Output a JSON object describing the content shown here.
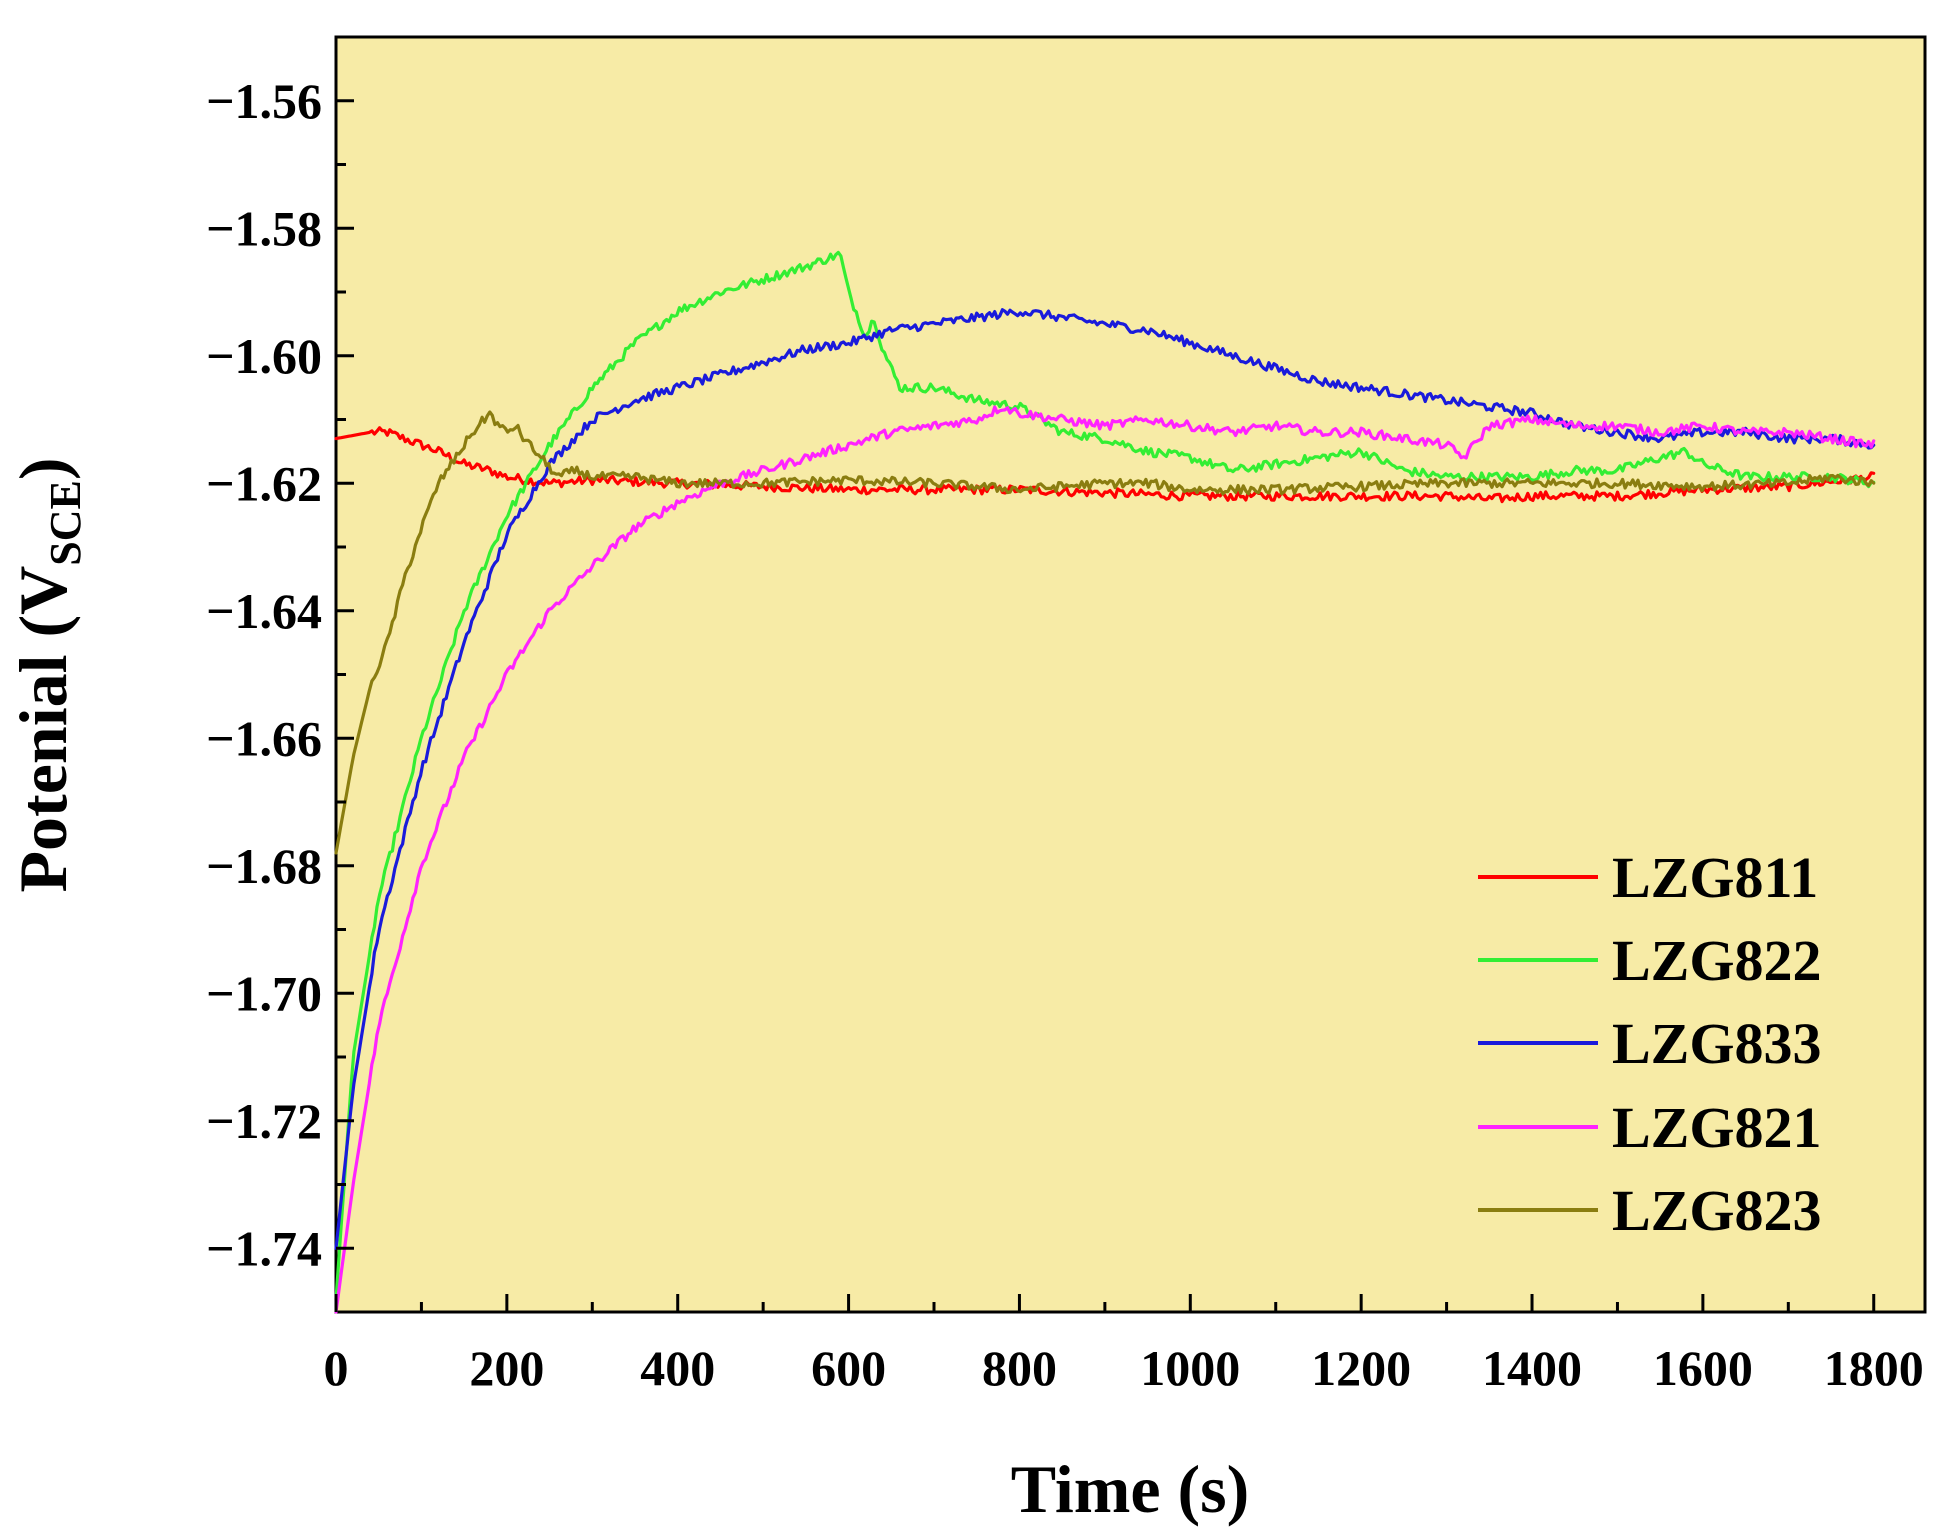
{
  "chart_data": {
    "type": "line",
    "title": "",
    "xlabel": "Time (s)",
    "ylabel_main": "Potenial (V",
    "ylabel_sub": "SCE",
    "ylabel_close": ")",
    "xlim": [
      0,
      1860
    ],
    "ylim": [
      -1.75,
      -1.55
    ],
    "xticks": [
      0,
      200,
      400,
      600,
      800,
      1000,
      1200,
      1400,
      1600,
      1800
    ],
    "xtick_labels": [
      "0",
      "200",
      "400",
      "600",
      "800",
      "1000",
      "1200",
      "1400",
      "1600",
      "1800"
    ],
    "yticks": [
      -1.56,
      -1.58,
      -1.6,
      -1.62,
      -1.64,
      -1.66,
      -1.68,
      -1.7,
      -1.72,
      -1.74
    ],
    "ytick_labels": [
      "−1.56",
      "−1.58",
      "−1.60",
      "−1.62",
      "−1.64",
      "−1.66",
      "−1.68",
      "−1.70",
      "−1.72",
      "−1.74"
    ],
    "background_color": "#f7eba6",
    "legend_position": "lower-right",
    "series": [
      {
        "name": "LZG811",
        "color": "#ff0000",
        "x": [
          0,
          20,
          40,
          60,
          80,
          100,
          120,
          150,
          180,
          200,
          250,
          300,
          400,
          500,
          600,
          700,
          800,
          900,
          1000,
          1100,
          1200,
          1300,
          1350,
          1400,
          1500,
          1600,
          1700,
          1800
        ],
        "y": [
          -1.613,
          -1.6125,
          -1.612,
          -1.612,
          -1.613,
          -1.614,
          -1.615,
          -1.617,
          -1.618,
          -1.619,
          -1.62,
          -1.6195,
          -1.62,
          -1.6205,
          -1.621,
          -1.621,
          -1.621,
          -1.6215,
          -1.622,
          -1.622,
          -1.622,
          -1.622,
          -1.6225,
          -1.622,
          -1.622,
          -1.621,
          -1.6205,
          -1.619
        ]
      },
      {
        "name": "LZG822",
        "color": "#33ee33",
        "x": [
          0,
          20,
          50,
          100,
          150,
          200,
          250,
          300,
          350,
          400,
          450,
          500,
          550,
          590,
          600,
          620,
          630,
          640,
          660,
          700,
          750,
          800,
          850,
          900,
          950,
          1000,
          1050,
          1100,
          1150,
          1200,
          1250,
          1300,
          1350,
          1400,
          1450,
          1500,
          1550,
          1580,
          1600,
          1650,
          1700,
          1750,
          1800
        ],
        "y": [
          -1.748,
          -1.71,
          -1.685,
          -1.66,
          -1.64,
          -1.625,
          -1.614,
          -1.605,
          -1.598,
          -1.593,
          -1.59,
          -1.588,
          -1.586,
          -1.584,
          -1.59,
          -1.597,
          -1.594,
          -1.599,
          -1.605,
          -1.605,
          -1.607,
          -1.608,
          -1.612,
          -1.613,
          -1.615,
          -1.616,
          -1.618,
          -1.617,
          -1.616,
          -1.615,
          -1.618,
          -1.619,
          -1.619,
          -1.619,
          -1.618,
          -1.618,
          -1.616,
          -1.615,
          -1.617,
          -1.619,
          -1.619,
          -1.619,
          -1.62
        ]
      },
      {
        "name": "LZG833",
        "color": "#1a1adb",
        "x": [
          0,
          20,
          50,
          100,
          150,
          200,
          250,
          300,
          350,
          400,
          450,
          500,
          550,
          600,
          650,
          700,
          750,
          800,
          850,
          900,
          950,
          1000,
          1050,
          1100,
          1150,
          1200,
          1250,
          1300,
          1350,
          1400,
          1450,
          1500,
          1550,
          1600,
          1650,
          1700,
          1750,
          1800
        ],
        "y": [
          -1.74,
          -1.715,
          -1.69,
          -1.665,
          -1.645,
          -1.628,
          -1.617,
          -1.61,
          -1.607,
          -1.605,
          -1.603,
          -1.601,
          -1.599,
          -1.598,
          -1.596,
          -1.595,
          -1.594,
          -1.593,
          -1.594,
          -1.595,
          -1.596,
          -1.598,
          -1.6,
          -1.602,
          -1.604,
          -1.605,
          -1.606,
          -1.607,
          -1.608,
          -1.609,
          -1.611,
          -1.612,
          -1.613,
          -1.612,
          -1.612,
          -1.613,
          -1.613,
          -1.614
        ]
      },
      {
        "name": "LZG821",
        "color": "#ff22ff",
        "x": [
          0,
          20,
          50,
          100,
          150,
          200,
          250,
          300,
          350,
          400,
          450,
          500,
          550,
          600,
          650,
          700,
          750,
          780,
          800,
          850,
          900,
          950,
          1000,
          1050,
          1100,
          1150,
          1200,
          1250,
          1300,
          1320,
          1350,
          1400,
          1450,
          1500,
          1550,
          1600,
          1650,
          1700,
          1750,
          1800
        ],
        "y": [
          -1.75,
          -1.73,
          -1.705,
          -1.68,
          -1.663,
          -1.65,
          -1.64,
          -1.633,
          -1.627,
          -1.623,
          -1.62,
          -1.618,
          -1.616,
          -1.614,
          -1.612,
          -1.611,
          -1.61,
          -1.608,
          -1.609,
          -1.61,
          -1.611,
          -1.61,
          -1.611,
          -1.612,
          -1.611,
          -1.612,
          -1.612,
          -1.613,
          -1.614,
          -1.616,
          -1.611,
          -1.61,
          -1.611,
          -1.611,
          -1.612,
          -1.611,
          -1.612,
          -1.612,
          -1.613,
          -1.614
        ]
      },
      {
        "name": "LZG823",
        "color": "#8a7d10",
        "x": [
          0,
          20,
          40,
          60,
          80,
          100,
          120,
          140,
          160,
          180,
          190,
          200,
          210,
          220,
          240,
          260,
          280,
          300,
          350,
          400,
          500,
          600,
          700,
          800,
          900,
          950,
          1000,
          1100,
          1200,
          1300,
          1400,
          1500,
          1600,
          1700,
          1750,
          1800
        ],
        "y": [
          -1.678,
          -1.663,
          -1.652,
          -1.645,
          -1.635,
          -1.627,
          -1.62,
          -1.616,
          -1.612,
          -1.609,
          -1.611,
          -1.612,
          -1.611,
          -1.613,
          -1.616,
          -1.619,
          -1.618,
          -1.619,
          -1.619,
          -1.62,
          -1.62,
          -1.6195,
          -1.62,
          -1.621,
          -1.62,
          -1.62,
          -1.621,
          -1.621,
          -1.6205,
          -1.62,
          -1.62,
          -1.62,
          -1.6205,
          -1.62,
          -1.619,
          -1.62
        ]
      }
    ]
  }
}
